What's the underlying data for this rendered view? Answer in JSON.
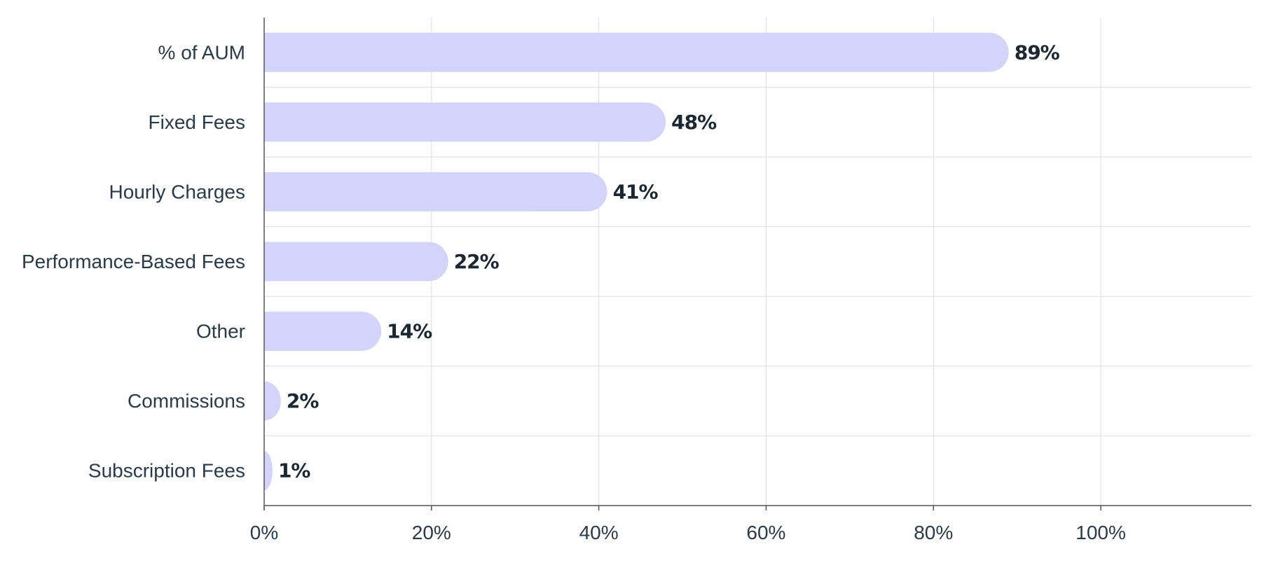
{
  "chart_data": {
    "type": "bar",
    "orientation": "horizontal",
    "title": "",
    "xlabel": "",
    "ylabel": "",
    "categories": [
      "% of AUM",
      "Fixed Fees",
      "Hourly Charges",
      "Performance-Based Fees",
      "Other",
      "Commissions",
      "Subscription Fees"
    ],
    "values": [
      89,
      48,
      41,
      22,
      14,
      2,
      1
    ],
    "value_labels": [
      "89%",
      "48%",
      "41%",
      "22%",
      "14%",
      "2%",
      "1%"
    ],
    "xlim": [
      0,
      118
    ],
    "xticks": [
      0,
      20,
      40,
      60,
      80,
      100
    ],
    "xtick_labels": [
      "0%",
      "20%",
      "40%",
      "60%",
      "80%",
      "100%"
    ],
    "grid": true,
    "legend": "none",
    "colors": {
      "bar": "#d4d4fa",
      "grid": "#dedede",
      "axis": "#555555",
      "label_text": "#2b3a4a",
      "value_text": "#1b2733"
    }
  }
}
